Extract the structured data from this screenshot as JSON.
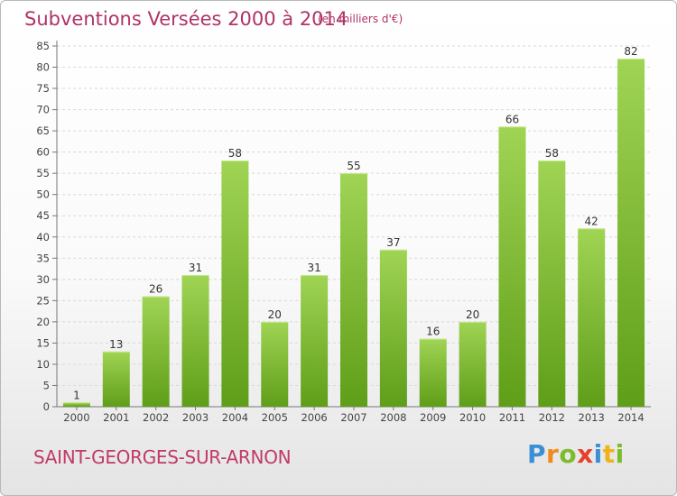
{
  "title": "Subventions Versées 2000 à 2014",
  "subtitle": "(en milliers d'€)",
  "place": "SAINT-GEORGES-SUR-ARNON",
  "logo": {
    "letters": [
      {
        "ch": "P",
        "color": "#3b8fd6"
      },
      {
        "ch": "r",
        "color": "#f08a1c"
      },
      {
        "ch": "o",
        "color": "#7cbc2a"
      },
      {
        "ch": "x",
        "color": "#e6402a"
      },
      {
        "ch": "i",
        "color": "#3b8fd6"
      },
      {
        "ch": "t",
        "color": "#f0b21c"
      },
      {
        "ch": "i",
        "color": "#7cbc2a"
      }
    ]
  },
  "colors": {
    "bar_top": "#a0d454",
    "bar_bottom": "#5f9e19",
    "text_accent": "#b03366"
  },
  "chart_data": {
    "type": "bar",
    "title": "Subventions Versées 2000 à 2014",
    "subtitle": "(en milliers d'€)",
    "categories": [
      "2000",
      "2001",
      "2002",
      "2003",
      "2004",
      "2005",
      "2006",
      "2007",
      "2008",
      "2009",
      "2010",
      "2011",
      "2012",
      "2013",
      "2014"
    ],
    "values": [
      1,
      13,
      26,
      31,
      58,
      20,
      31,
      55,
      37,
      16,
      20,
      66,
      58,
      42,
      82
    ],
    "ylim": [
      0,
      85
    ],
    "yticks": [
      0,
      5,
      10,
      15,
      20,
      25,
      30,
      35,
      40,
      45,
      50,
      55,
      60,
      65,
      70,
      75,
      80,
      85
    ],
    "grid": true,
    "legend": "none"
  }
}
